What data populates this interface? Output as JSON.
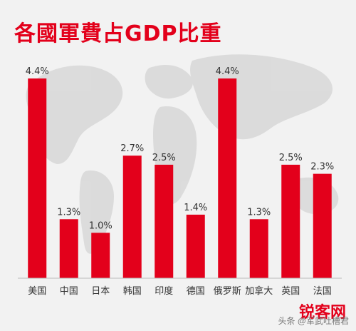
{
  "chart_data": {
    "type": "bar",
    "title": "各國軍費占GDP比重",
    "categories": [
      "美国",
      "中国",
      "日本",
      "韩国",
      "印度",
      "德国",
      "俄罗斯",
      "加拿大",
      "英国",
      "法国"
    ],
    "values": [
      4.4,
      1.3,
      1.0,
      2.7,
      2.5,
      1.4,
      4.4,
      1.3,
      2.5,
      2.3
    ],
    "value_labels": [
      "4.4%",
      "1.3%",
      "1.0%",
      "2.7%",
      "2.5%",
      "1.4%",
      "4.4%",
      "1.3%",
      "2.5%",
      "2.3%"
    ],
    "ylim": [
      0,
      4.4
    ],
    "grid": false,
    "bar_color": "#e3001b",
    "background_color": "#f2f2f2",
    "map_color": "#d9d9d9"
  },
  "watermark": "头条 @军武吐槽君",
  "logo_text": "锐客网"
}
